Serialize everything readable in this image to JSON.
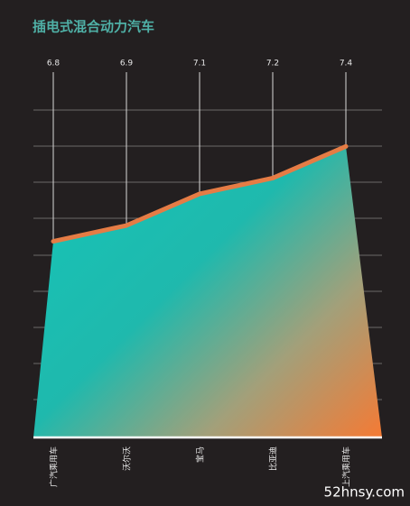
{
  "chart_data": {
    "type": "area",
    "title": "插电式混合动力汽车",
    "categories": [
      "广汽乘用车",
      "沃尔沃",
      "宝马",
      "比亚迪",
      "上汽乘用车"
    ],
    "values": [
      6.8,
      6.9,
      7.1,
      7.2,
      7.4
    ],
    "color": "#e57c45",
    "ylim": [
      5.56,
      7.63
    ]
  },
  "watermark": "52hnsy.com"
}
